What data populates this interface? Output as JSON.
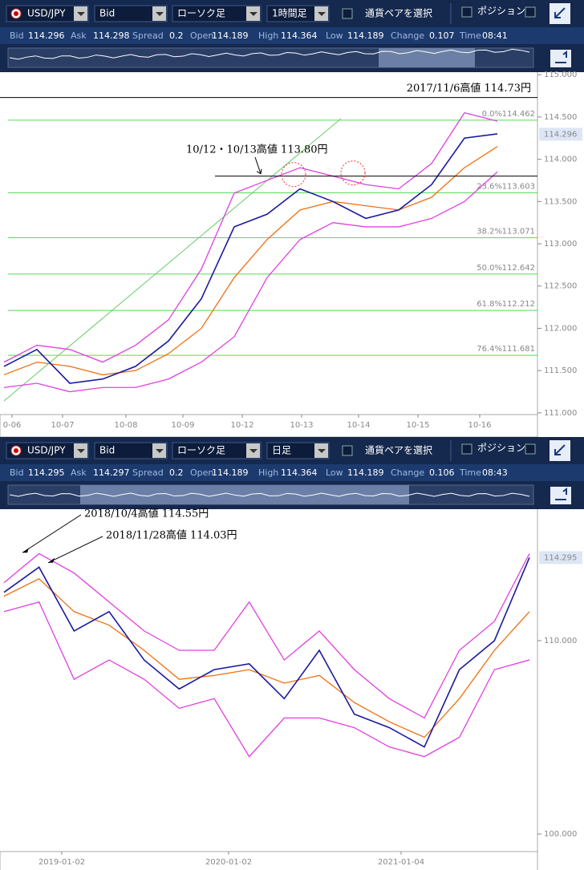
{
  "panels": [
    {
      "toolbar": {
        "pair": "USD/JPY",
        "price_type": "Bid",
        "chart_type": "ローソク足",
        "timeframe": "1時間足",
        "pair_select": "通貨ペアを選択",
        "position": "ポジション"
      },
      "quote": [
        {
          "label": "Bid",
          "value": "114.296"
        },
        {
          "label": "Ask",
          "value": "114.298"
        },
        {
          "label": "Spread",
          "value": "0.2"
        },
        {
          "label": "Open",
          "value": "114.189"
        },
        {
          "label": "High",
          "value": "114.364"
        },
        {
          "label": "Low",
          "value": "114.189"
        },
        {
          "label": "Change",
          "value": "0.107"
        },
        {
          "label": "Time",
          "value": "08:41"
        }
      ],
      "chart": {
        "type": "line",
        "ylim": [
          110.98,
          115.03
        ],
        "yticks": [
          {
            "value": 111,
            "label": "111.000"
          },
          {
            "value": 111.5,
            "label": "111.500"
          },
          {
            "value": 112,
            "label": "112.000"
          },
          {
            "value": 112.5,
            "label": "112.500"
          },
          {
            "value": 113,
            "label": "113.000"
          },
          {
            "value": 113.5,
            "label": "113.500"
          },
          {
            "value": 114,
            "label": "114.000"
          },
          {
            "value": 114.5,
            "label": "114.500"
          },
          {
            "value": 115,
            "label": "115.000"
          }
        ],
        "xlabels": [
          "0-06",
          "10-07",
          "10-08",
          "10-09",
          "10-12",
          "10-13",
          "10-14",
          "10-15",
          "10-16"
        ],
        "current_price": 114.296,
        "series": [
          {
            "color": "#e040e0",
            "values": [
              111.6,
              111.8,
              111.75,
              111.6,
              111.8,
              112.1,
              112.7,
              113.6,
              113.75,
              113.9,
              113.8,
              113.7,
              113.65,
              113.95,
              114.55,
              114.45
            ]
          },
          {
            "color": "#e040e0",
            "values": [
              111.3,
              111.35,
              111.25,
              111.3,
              111.3,
              111.4,
              111.6,
              111.9,
              112.6,
              113.05,
              113.25,
              113.2,
              113.2,
              113.3,
              113.5,
              113.85
            ]
          },
          {
            "color": "#f07010",
            "values": [
              111.45,
              111.6,
              111.55,
              111.45,
              111.5,
              111.7,
              112.0,
              112.6,
              113.05,
              113.4,
              113.5,
              113.45,
              113.4,
              113.55,
              113.9,
              114.15
            ]
          },
          {
            "color": "#1a1aa0",
            "values": [
              111.55,
              111.75,
              111.35,
              111.4,
              111.55,
              111.85,
              112.35,
              113.2,
              113.35,
              113.65,
              113.5,
              113.3,
              113.4,
              113.7,
              114.25,
              114.3
            ]
          }
        ],
        "fib": [
          {
            "level": "0.0%",
            "price": 114.462
          },
          {
            "level": "23.6%",
            "price": 113.603
          },
          {
            "level": "38.2%",
            "price": 113.071
          },
          {
            "level": "50.0%",
            "price": 112.642
          },
          {
            "level": "61.8%",
            "price": 112.212
          },
          {
            "level": "76.4%",
            "price": 111.681
          }
        ],
        "annotations": [
          {
            "text": "2017/11/6高値 114.73円",
            "value": 114.73
          },
          {
            "text": "10/12・10/13高値 113.80円",
            "value": 113.8
          }
        ]
      }
    },
    {
      "toolbar": {
        "pair": "USD/JPY",
        "price_type": "Bid",
        "chart_type": "ローソク足",
        "timeframe": "日足",
        "pair_select": "通貨ペアを選択",
        "position": "ポジション"
      },
      "quote": [
        {
          "label": "Bid",
          "value": "114.295"
        },
        {
          "label": "Ask",
          "value": "114.297"
        },
        {
          "label": "Spread",
          "value": "0.2"
        },
        {
          "label": "Open",
          "value": "114.189"
        },
        {
          "label": "High",
          "value": "114.364"
        },
        {
          "label": "Low",
          "value": "114.189"
        },
        {
          "label": "Change",
          "value": "0.106"
        },
        {
          "label": "Time",
          "value": "08:43"
        }
      ],
      "chart": {
        "type": "line",
        "ylim": [
          99.09,
          116.8
        ],
        "yticks": [
          {
            "value": 100,
            "label": "100.000"
          },
          {
            "value": 110,
            "label": "110.000"
          }
        ],
        "xlabels": [
          "2019-01-02",
          "2020-01-02",
          "2021-01-04"
        ],
        "current_price": 114.295,
        "series": [
          {
            "color": "#e040e0",
            "values": [
              113.0,
              114.5,
              113.5,
              112.0,
              110.5,
              109.5,
              109.5,
              112.0,
              109.0,
              110.5,
              108.5,
              107.0,
              106.0,
              109.5,
              111.0,
              114.5
            ]
          },
          {
            "color": "#e040e0",
            "values": [
              111.5,
              112.0,
              108.0,
              109.0,
              108.0,
              106.5,
              107.0,
              104.0,
              106.0,
              106.0,
              105.5,
              104.5,
              104.0,
              105.0,
              108.5,
              109.0
            ]
          },
          {
            "color": "#f07010",
            "values": [
              112.3,
              113.2,
              111.5,
              110.8,
              109.5,
              108.0,
              108.2,
              108.5,
              107.8,
              108.2,
              106.8,
              105.8,
              105.0,
              107.0,
              109.5,
              111.5
            ]
          },
          {
            "color": "#1a1aa0",
            "values": [
              112.5,
              113.8,
              110.5,
              111.5,
              109.0,
              107.5,
              108.5,
              108.8,
              107.0,
              109.5,
              106.2,
              105.5,
              104.5,
              108.5,
              110.0,
              114.3
            ]
          }
        ],
        "annotations": [
          {
            "text": "2018/10/4高値 114.55円",
            "value": 114.55
          },
          {
            "text": "2018/11/28高値 114.03円",
            "value": 114.03
          }
        ]
      }
    }
  ]
}
